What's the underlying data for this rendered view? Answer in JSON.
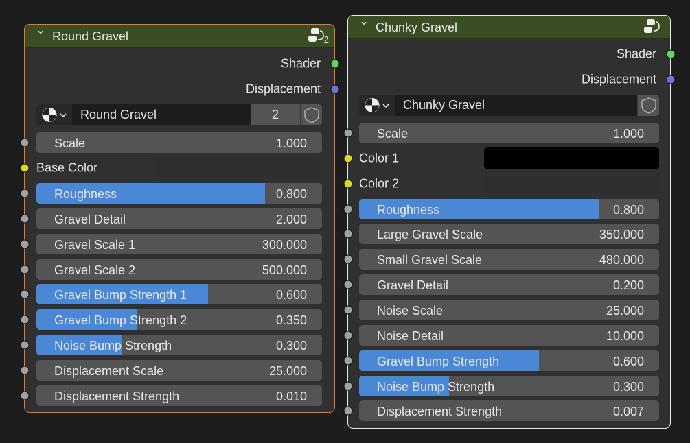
{
  "colors": {
    "shader_socket": "#5fd65f",
    "displacement_socket": "#6f6fd8",
    "value_socket": "#a1a1a1",
    "color_socket": "#d9d92a",
    "accent": "#4a87d4",
    "selected_border": "#e47a2c",
    "active_border": "#e8e8e8",
    "header": "#3a4d23"
  },
  "nodes": [
    {
      "title": "Round Gravel",
      "group_icon": "node-group-icon",
      "group_users": "2",
      "outputs": [
        "Shader",
        "Displacement"
      ],
      "datablock": {
        "name": "Round Gravel",
        "users": "2"
      },
      "inputs": [
        {
          "label": "Scale",
          "value": "1.000",
          "type": "value"
        },
        {
          "label": "Base Color",
          "type": "color",
          "color": "#2f2f2f"
        },
        {
          "label": "Roughness",
          "value": "0.800",
          "type": "factor",
          "fraction": 0.8
        },
        {
          "label": "Gravel Detail",
          "value": "2.000",
          "type": "value"
        },
        {
          "label": "Gravel Scale 1",
          "value": "300.000",
          "type": "value"
        },
        {
          "label": "Gravel Scale 2",
          "value": "500.000",
          "type": "value"
        },
        {
          "label": "Gravel Bump Strength 1",
          "value": "0.600",
          "type": "factor",
          "fraction": 0.6
        },
        {
          "label": "Gravel Bump Strength 2",
          "value": "0.350",
          "type": "factor",
          "fraction": 0.35
        },
        {
          "label": "Noise Bump Strength",
          "value": "0.300",
          "type": "factor",
          "fraction": 0.3
        },
        {
          "label": "Displacement Scale",
          "value": "25.000",
          "type": "value"
        },
        {
          "label": "Displacement Strength",
          "value": "0.010",
          "type": "value"
        }
      ]
    },
    {
      "title": "Chunky Gravel",
      "group_icon": "node-group-icon",
      "outputs": [
        "Shader",
        "Displacement"
      ],
      "datablock": {
        "name": "Chunky Gravel"
      },
      "inputs": [
        {
          "label": "Scale",
          "value": "1.000",
          "type": "value"
        },
        {
          "label": "Color 1",
          "type": "color",
          "color": "#000000"
        },
        {
          "label": "Color 2",
          "type": "color",
          "color": "#2f2f2f"
        },
        {
          "label": "Roughness",
          "value": "0.800",
          "type": "factor",
          "fraction": 0.8
        },
        {
          "label": "Large Gravel Scale",
          "value": "350.000",
          "type": "value"
        },
        {
          "label": "Small Gravel Scale",
          "value": "480.000",
          "type": "value"
        },
        {
          "label": "Gravel Detail",
          "value": "0.200",
          "type": "value"
        },
        {
          "label": "Noise Scale",
          "value": "25.000",
          "type": "value"
        },
        {
          "label": "Noise Detail",
          "value": "10.000",
          "type": "value"
        },
        {
          "label": "Gravel Bump Strength",
          "value": "0.600",
          "type": "factor",
          "fraction": 0.6
        },
        {
          "label": "Noise Bump Strength",
          "value": "0.300",
          "type": "factor",
          "fraction": 0.3
        },
        {
          "label": "Displacement Strength",
          "value": "0.007",
          "type": "value"
        }
      ]
    }
  ]
}
